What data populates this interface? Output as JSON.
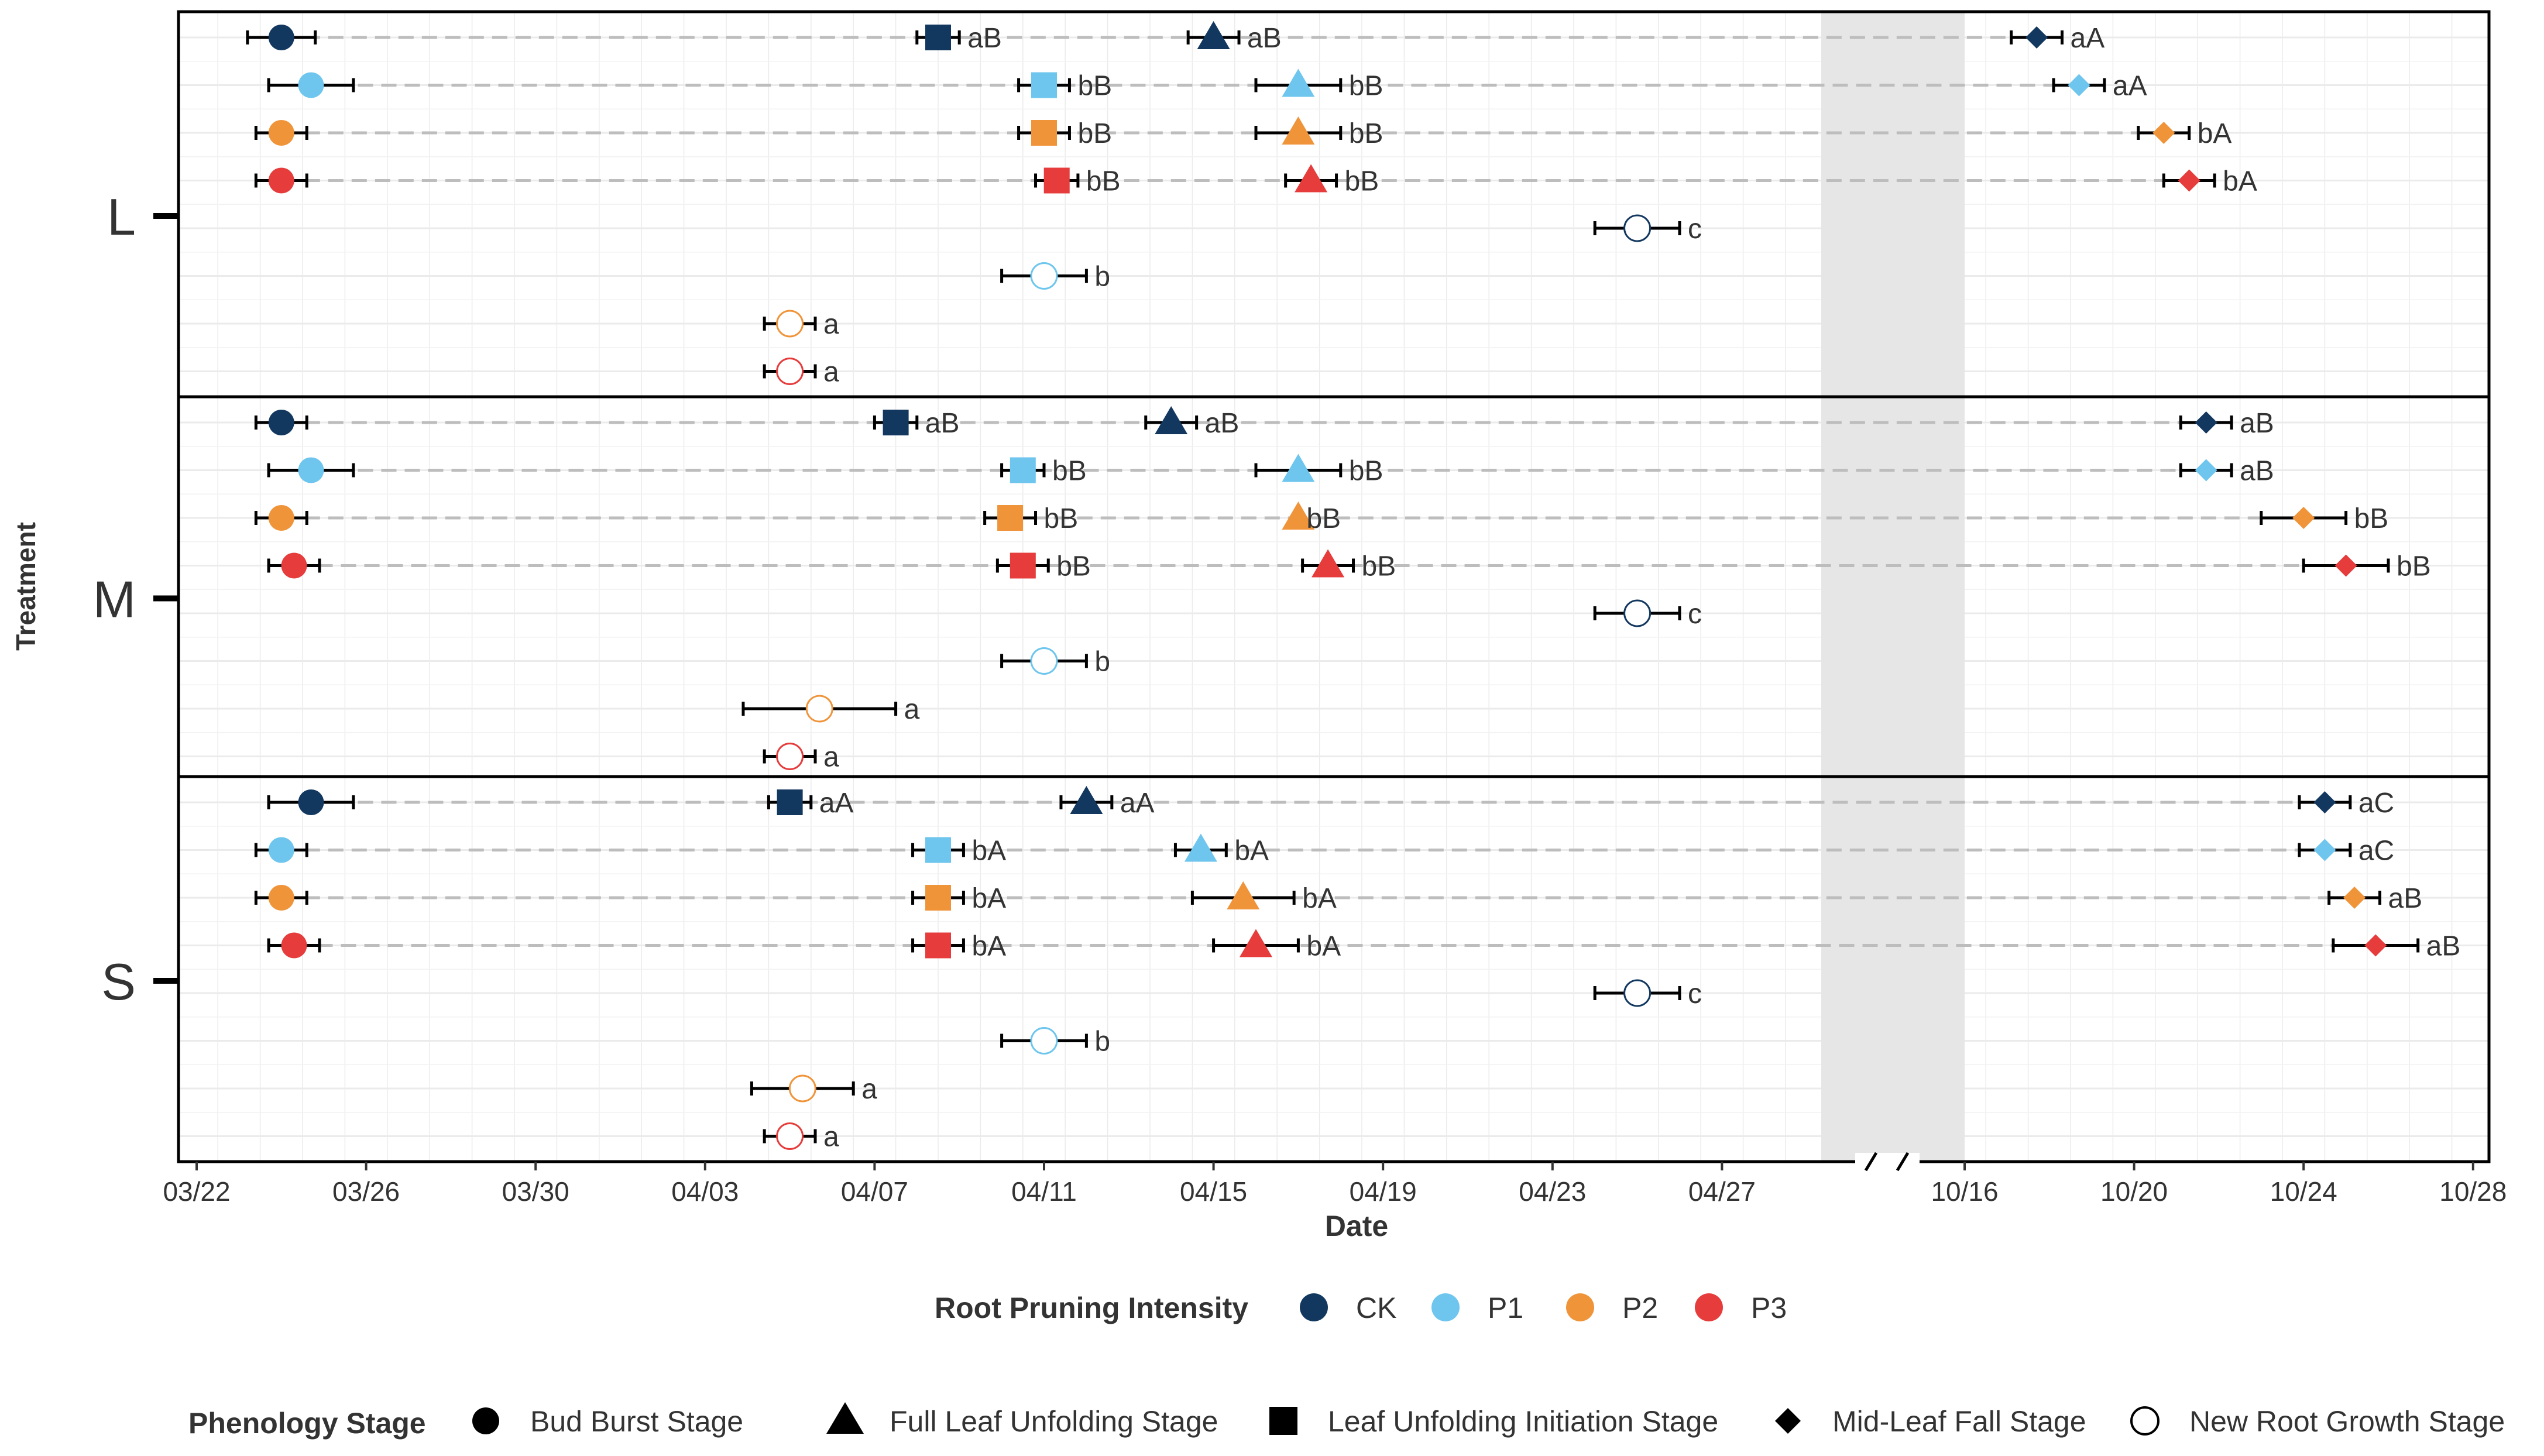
{
  "chart_data": {
    "type": "scatter",
    "xlabel": "Date",
    "ylabel": "Treatment",
    "x_ticks_left": [
      "03/22",
      "03/26",
      "03/30",
      "04/03",
      "04/07",
      "04/11",
      "04/15",
      "04/19",
      "04/23",
      "04/27"
    ],
    "x_ticks_right": [
      "10/16",
      "10/20",
      "10/24",
      "10/28"
    ],
    "x_range_left": [
      "03/22",
      "04/30"
    ],
    "x_range_right": [
      "10/16",
      "10/29"
    ],
    "axis_break": "between 04/30 and 10/16",
    "grid": true,
    "panels": [
      "L",
      "M",
      "S"
    ],
    "legend_intensity": {
      "title": "Root Pruning Intensity",
      "entries": [
        {
          "label": "CK",
          "color": "#13385f"
        },
        {
          "label": "P1",
          "color": "#6ec6ee"
        },
        {
          "label": "P2",
          "color": "#f0943a"
        },
        {
          "label": "P3",
          "color": "#e63c3c"
        }
      ]
    },
    "legend_stage": {
      "title": "Phenology Stage",
      "entries": [
        {
          "label": "Bud Burst Stage",
          "shape": "circle"
        },
        {
          "label": "Full Leaf Unfolding Stage",
          "shape": "triangle"
        },
        {
          "label": "Leaf Unfolding Initiation Stage",
          "shape": "square"
        },
        {
          "label": "Mid-Leaf Fall Stage",
          "shape": "diamond"
        },
        {
          "label": "New Root Growth Stage",
          "shape": "open-circle"
        }
      ]
    },
    "treatments": [
      {
        "name": "L",
        "rows": [
          {
            "group": "CK",
            "points": [
              {
                "stage": "bud",
                "date": "03/24",
                "err": 0.8,
                "label": ""
              },
              {
                "stage": "init",
                "date": "04/08.5",
                "err": 0.5,
                "label": "aB"
              },
              {
                "stage": "full",
                "date": "04/15",
                "err": 0.6,
                "label": "aB"
              },
              {
                "stage": "fall",
                "date": "10/17.7",
                "err": 0.6,
                "label": "aA"
              }
            ]
          },
          {
            "group": "P1",
            "points": [
              {
                "stage": "bud",
                "date": "03/24.7",
                "err": 1.0,
                "label": ""
              },
              {
                "stage": "init",
                "date": "04/11",
                "err": 0.6,
                "label": "bB"
              },
              {
                "stage": "full",
                "date": "04/17",
                "err": 1.0,
                "label": "bB"
              },
              {
                "stage": "fall",
                "date": "10/18.7",
                "err": 0.6,
                "label": "aA"
              }
            ]
          },
          {
            "group": "P2",
            "points": [
              {
                "stage": "bud",
                "date": "03/24",
                "err": 0.6,
                "label": ""
              },
              {
                "stage": "init",
                "date": "04/11",
                "err": 0.6,
                "label": "bB"
              },
              {
                "stage": "full",
                "date": "04/17",
                "err": 1.0,
                "label": "bB"
              },
              {
                "stage": "fall",
                "date": "10/20.7",
                "err": 0.6,
                "label": "bA"
              }
            ]
          },
          {
            "group": "P3",
            "points": [
              {
                "stage": "bud",
                "date": "03/24",
                "err": 0.6,
                "label": ""
              },
              {
                "stage": "init",
                "date": "04/11.3",
                "err": 0.5,
                "label": "bB"
              },
              {
                "stage": "full",
                "date": "04/17.3",
                "err": 0.6,
                "label": "bB"
              },
              {
                "stage": "fall",
                "date": "10/21.3",
                "err": 0.6,
                "label": "bA"
              }
            ]
          }
        ],
        "root_rows": [
          {
            "group": "CK",
            "date": "04/25",
            "err": 1.0,
            "label": "c"
          },
          {
            "group": "P1",
            "date": "04/11",
            "err": 1.0,
            "label": "b"
          },
          {
            "group": "P2",
            "date": "04/05",
            "err": 0.6,
            "label": "a"
          },
          {
            "group": "P3",
            "date": "04/05",
            "err": 0.6,
            "label": "a"
          }
        ]
      },
      {
        "name": "M",
        "rows": [
          {
            "group": "CK",
            "points": [
              {
                "stage": "bud",
                "date": "03/24",
                "err": 0.6,
                "label": ""
              },
              {
                "stage": "init",
                "date": "04/07.5",
                "err": 0.5,
                "label": "aB"
              },
              {
                "stage": "full",
                "date": "04/14",
                "err": 0.6,
                "label": "aB"
              },
              {
                "stage": "fall",
                "date": "10/21.7",
                "err": 0.6,
                "label": "aB"
              }
            ]
          },
          {
            "group": "P1",
            "points": [
              {
                "stage": "bud",
                "date": "03/24.7",
                "err": 1.0,
                "label": ""
              },
              {
                "stage": "init",
                "date": "04/10.5",
                "err": 0.5,
                "label": "bB"
              },
              {
                "stage": "full",
                "date": "04/17",
                "err": 1.0,
                "label": "bB"
              },
              {
                "stage": "fall",
                "date": "10/21.7",
                "err": 0.6,
                "label": "aB"
              }
            ]
          },
          {
            "group": "P2",
            "points": [
              {
                "stage": "bud",
                "date": "03/24",
                "err": 0.6,
                "label": ""
              },
              {
                "stage": "init",
                "date": "04/10.2",
                "err": 0.6,
                "label": "bB"
              },
              {
                "stage": "full",
                "date": "04/17",
                "err": 0.0,
                "label": "bB"
              },
              {
                "stage": "fall",
                "date": "10/24",
                "err": 1.0,
                "label": "bB"
              }
            ]
          },
          {
            "group": "P3",
            "points": [
              {
                "stage": "bud",
                "date": "03/24.3",
                "err": 0.6,
                "label": ""
              },
              {
                "stage": "init",
                "date": "04/10.5",
                "err": 0.6,
                "label": "bB"
              },
              {
                "stage": "full",
                "date": "04/17.7",
                "err": 0.6,
                "label": "bB"
              },
              {
                "stage": "fall",
                "date": "10/25",
                "err": 1.0,
                "label": "bB"
              }
            ]
          }
        ],
        "root_rows": [
          {
            "group": "CK",
            "date": "04/25",
            "err": 1.0,
            "label": "c"
          },
          {
            "group": "P1",
            "date": "04/11",
            "err": 1.0,
            "label": "b"
          },
          {
            "group": "P2",
            "date": "04/05.7",
            "err": 1.8,
            "label": "a"
          },
          {
            "group": "P3",
            "date": "04/05",
            "err": 0.6,
            "label": "a"
          }
        ]
      },
      {
        "name": "S",
        "rows": [
          {
            "group": "CK",
            "points": [
              {
                "stage": "bud",
                "date": "03/24.7",
                "err": 1.0,
                "label": ""
              },
              {
                "stage": "init",
                "date": "04/05",
                "err": 0.5,
                "label": "aA"
              },
              {
                "stage": "full",
                "date": "04/12",
                "err": 0.6,
                "label": "aA"
              },
              {
                "stage": "fall",
                "date": "10/24.5",
                "err": 0.6,
                "label": "aC"
              }
            ]
          },
          {
            "group": "P1",
            "points": [
              {
                "stage": "bud",
                "date": "03/24",
                "err": 0.6,
                "label": ""
              },
              {
                "stage": "init",
                "date": "04/08.5",
                "err": 0.6,
                "label": "bA"
              },
              {
                "stage": "full",
                "date": "04/14.7",
                "err": 0.6,
                "label": "bA"
              },
              {
                "stage": "fall",
                "date": "10/24.5",
                "err": 0.6,
                "label": "aC"
              }
            ]
          },
          {
            "group": "P2",
            "points": [
              {
                "stage": "bud",
                "date": "03/24",
                "err": 0.6,
                "label": ""
              },
              {
                "stage": "init",
                "date": "04/08.5",
                "err": 0.6,
                "label": "bA"
              },
              {
                "stage": "full",
                "date": "04/15.7",
                "err": 1.2,
                "label": "bA"
              },
              {
                "stage": "fall",
                "date": "10/25.2",
                "err": 0.6,
                "label": "aB"
              }
            ]
          },
          {
            "group": "P3",
            "points": [
              {
                "stage": "bud",
                "date": "03/24.3",
                "err": 0.6,
                "label": ""
              },
              {
                "stage": "init",
                "date": "04/08.5",
                "err": 0.6,
                "label": "bA"
              },
              {
                "stage": "full",
                "date": "04/16",
                "err": 1.0,
                "label": "bA"
              },
              {
                "stage": "fall",
                "date": "10/25.7",
                "err": 1.0,
                "label": "aB"
              }
            ]
          }
        ],
        "root_rows": [
          {
            "group": "CK",
            "date": "04/25",
            "err": 1.0,
            "label": "c"
          },
          {
            "group": "P1",
            "date": "04/11",
            "err": 1.0,
            "label": "b"
          },
          {
            "group": "P2",
            "date": "04/05.3",
            "err": 1.2,
            "label": "a"
          },
          {
            "group": "P3",
            "date": "04/05",
            "err": 0.6,
            "label": "a"
          }
        ]
      }
    ]
  }
}
